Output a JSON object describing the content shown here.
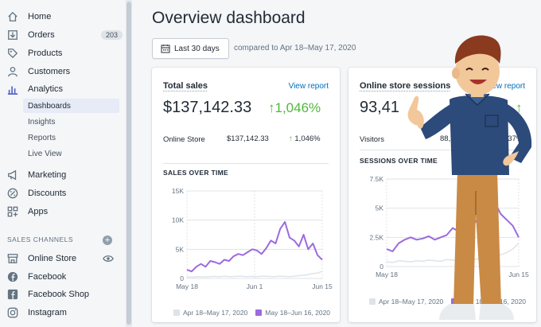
{
  "sidebar": {
    "items": [
      {
        "label": "Home",
        "icon": "home-icon"
      },
      {
        "label": "Orders",
        "icon": "orders-icon",
        "badge": "203"
      },
      {
        "label": "Products",
        "icon": "tag-icon"
      },
      {
        "label": "Customers",
        "icon": "person-icon"
      },
      {
        "label": "Analytics",
        "icon": "bar-chart-icon"
      }
    ],
    "analytics_sub": [
      "Dashboards",
      "Insights",
      "Reports",
      "Live View"
    ],
    "items2": [
      {
        "label": "Marketing",
        "icon": "megaphone-icon"
      },
      {
        "label": "Discounts",
        "icon": "discount-icon"
      },
      {
        "label": "Apps",
        "icon": "apps-icon"
      }
    ],
    "channels_title": "SALES CHANNELS",
    "channels": [
      {
        "label": "Online Store",
        "icon": "store-icon"
      },
      {
        "label": "Facebook",
        "icon": "facebook-icon"
      },
      {
        "label": "Facebook Shop",
        "icon": "facebook-icon"
      },
      {
        "label": "Instagram",
        "icon": "instagram-icon"
      }
    ]
  },
  "main": {
    "title": "Overview dashboard",
    "date_button": "Last 30 days",
    "compare_text": "compared to Apr 18–May 17, 2020"
  },
  "cards": [
    {
      "title": "Total sales",
      "link": "View report",
      "value": "$137,142.33",
      "change": "↑1,046%",
      "row_label": "Online Store",
      "row_value": "$137,142.33",
      "row_change": "1,046%",
      "chart_title": "SALES OVER TIME"
    },
    {
      "title": "Online store sessions",
      "link": "View report",
      "value": "93,41",
      "change": "↑",
      "row_label": "Visitors",
      "row_value": "88,",
      "row_change": "437%",
      "chart_title": "SESSIONS OVER TIME"
    }
  ],
  "colors": {
    "current": "#9c6ade",
    "previous": "#dfe3e8",
    "accent": "#50b83c",
    "link": "#006fbb"
  },
  "chart_data": [
    {
      "type": "line",
      "title": "SALES OVER TIME",
      "y_ticks": [
        "0",
        "5K",
        "10K",
        "15K"
      ],
      "x_ticks": [
        "May 18",
        "Jun 1",
        "Jun 15"
      ],
      "ylim": [
        0,
        15000
      ],
      "series": [
        {
          "name": "Apr 18–May 17, 2020",
          "color": "#dfe3e8",
          "values": [
            300,
            200,
            300,
            250,
            300,
            350,
            300,
            400,
            300,
            350,
            400,
            300,
            350,
            300,
            400,
            350,
            300,
            400,
            350,
            300,
            400,
            500,
            600,
            800,
            900,
            1200
          ]
        },
        {
          "name": "May 18–Jun 16, 2020",
          "color": "#9c6ade",
          "values": [
            1500,
            1200,
            2000,
            2500,
            2000,
            3000,
            2800,
            2500,
            3200,
            3000,
            3800,
            4200,
            4000,
            4500,
            5000,
            4800,
            4200,
            5200,
            6500,
            6000,
            8500,
            9700,
            7000,
            6500,
            5500,
            7500,
            5000,
            6000,
            4000,
            3200
          ]
        }
      ]
    },
    {
      "type": "line",
      "title": "SESSIONS OVER TIME",
      "y_ticks": [
        "0",
        "2.5K",
        "5K",
        "7.5K"
      ],
      "x_ticks": [
        "May 18",
        "Jun 15"
      ],
      "ylim": [
        0,
        7500
      ],
      "series": [
        {
          "name": "Apr 18–May 17, 2020",
          "color": "#dfe3e8",
          "values": [
            400,
            350,
            500,
            450,
            400,
            500,
            450,
            550,
            500,
            450,
            600,
            550,
            500,
            600,
            550,
            650,
            700,
            800,
            900,
            1000,
            1200,
            1500,
            2000
          ]
        },
        {
          "name": "",
          "color": "#9c6ade",
          "values": [
            1500,
            1300,
            2000,
            2300,
            2500,
            2300,
            2400,
            2600,
            2300,
            2500,
            2700,
            3300,
            3000,
            3500,
            3200,
            4000,
            3800,
            4500,
            5500,
            4500,
            4000,
            3500,
            2500
          ]
        }
      ]
    }
  ]
}
